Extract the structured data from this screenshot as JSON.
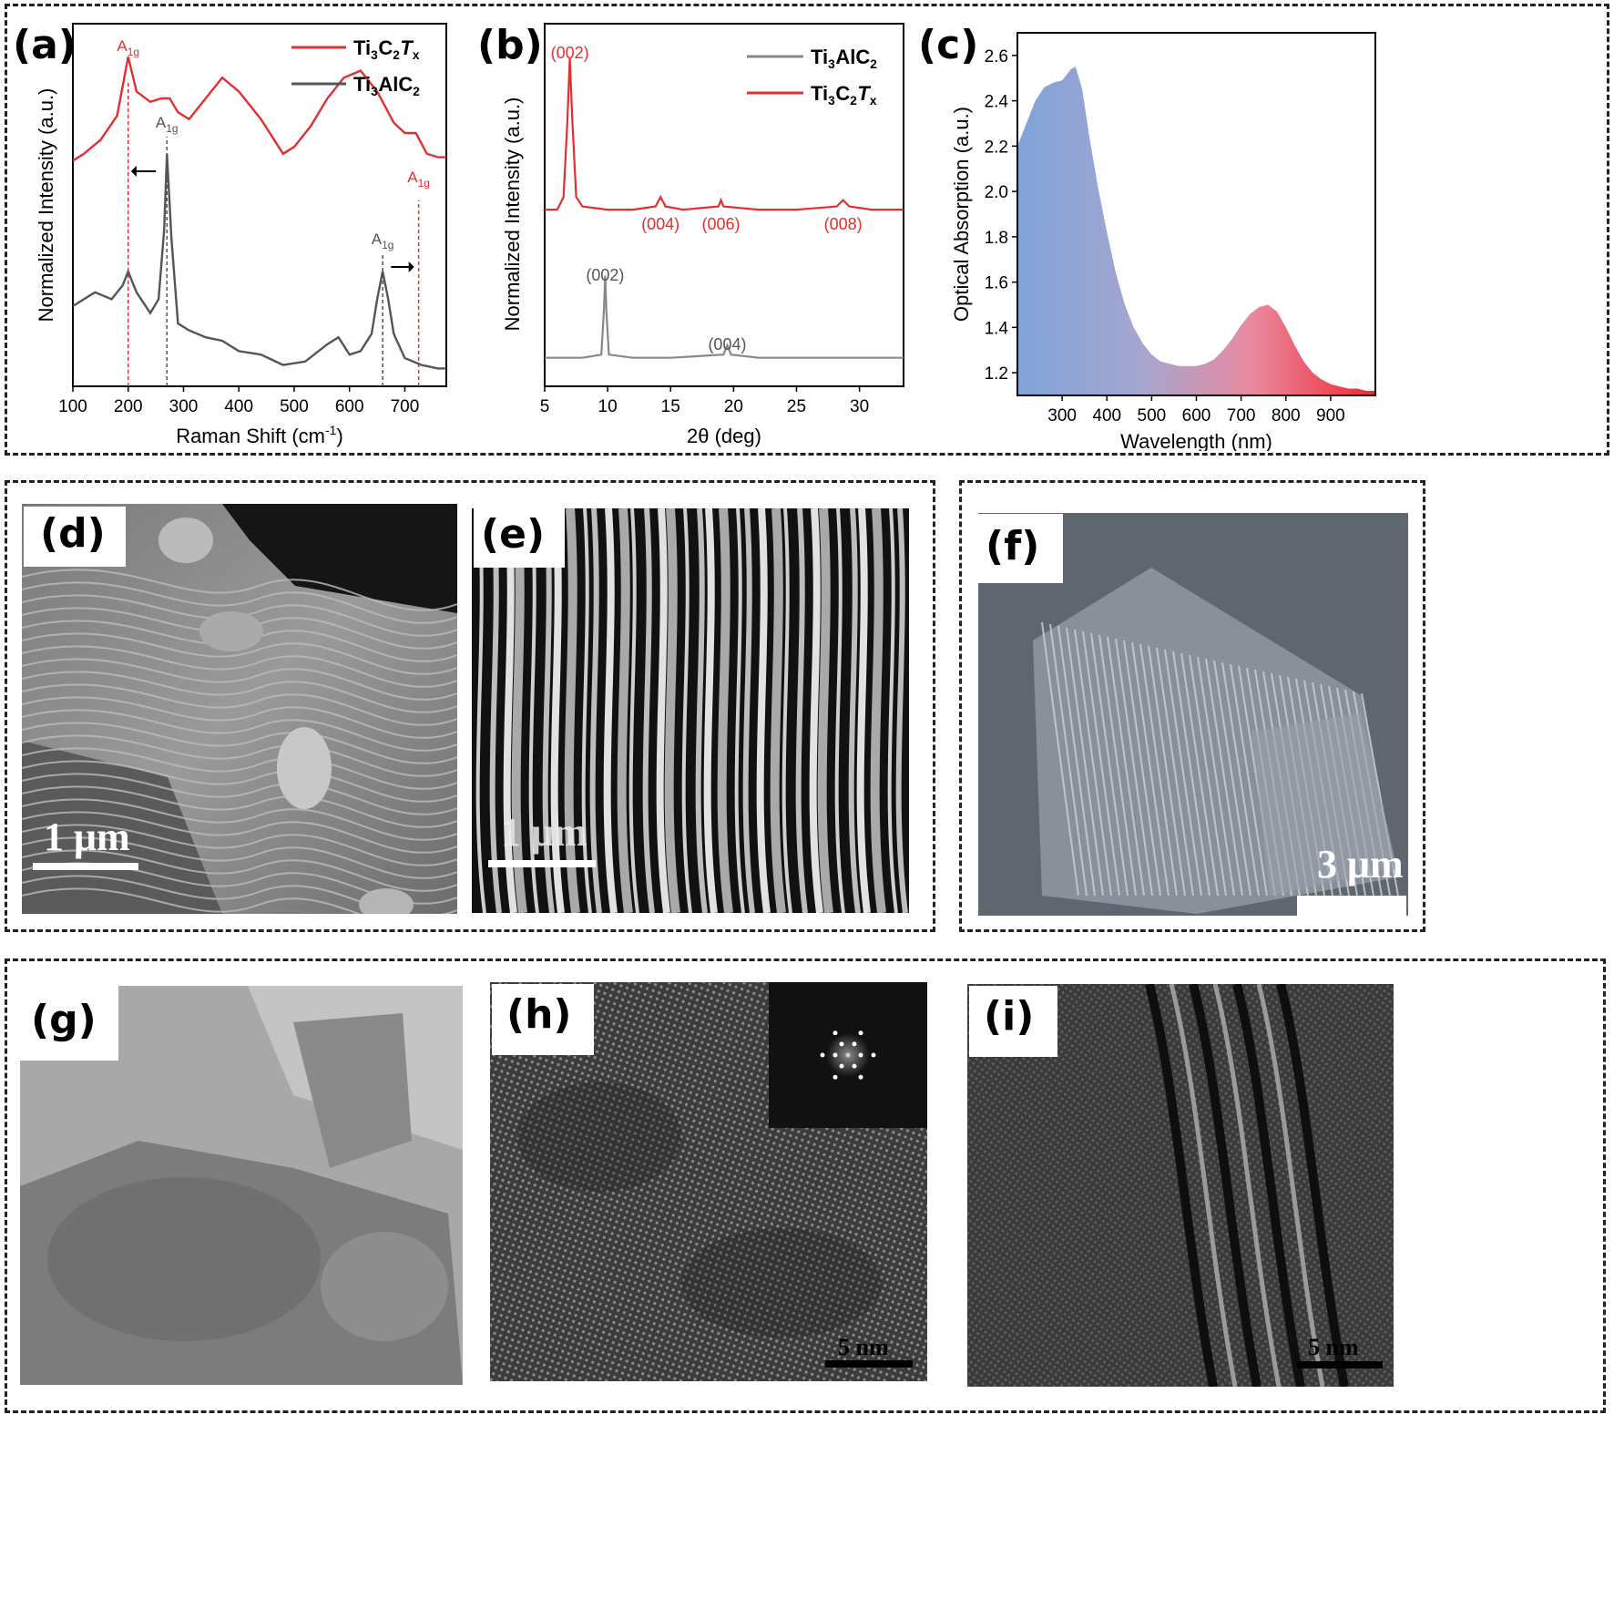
{
  "panels": {
    "a": {
      "label": "(a)",
      "xlabel_main": "Raman Shift (cm",
      "xlabel_sup": "-1",
      "xlabel_close": ")",
      "ylabel": "Normalized Intensity (a.u.)",
      "legend": [
        {
          "prefix": "Ti",
          "s1": "3",
          "mid": "C",
          "s2": "2",
          "suffix": "T",
          "suffix_sub": "x",
          "color": "#e03030"
        },
        {
          "prefix": "Ti",
          "s1": "3",
          "mid": "AlC",
          "s2": "2",
          "suffix": "",
          "suffix_sub": "",
          "color": "#555555"
        }
      ],
      "peak_labels": [
        {
          "main": "A",
          "sub": "1g",
          "color": "#e03030",
          "x": 200
        },
        {
          "main": "A",
          "sub": "1g",
          "color": "#555555",
          "x": 270
        },
        {
          "main": "A",
          "sub": "1g",
          "color": "#e03030",
          "x": 725
        },
        {
          "main": "A",
          "sub": "1g",
          "color": "#555555",
          "x": 660
        }
      ]
    },
    "b": {
      "label": "(b)",
      "xlabel": "2θ (deg)",
      "ylabel": "Normalized Intensity (a.u.)",
      "legend": [
        {
          "prefix": "Ti",
          "s1": "3",
          "mid": "AlC",
          "s2": "2",
          "suffix": "",
          "suffix_sub": "",
          "color": "#888888"
        },
        {
          "prefix": "Ti",
          "s1": "3",
          "mid": "C",
          "s2": "2",
          "suffix": "T",
          "suffix_sub": "x",
          "color": "#e03030"
        }
      ],
      "red_peaks": [
        {
          "text": "(002)",
          "x": 7
        },
        {
          "text": "(004)",
          "x": 14.2
        },
        {
          "text": "(006)",
          "x": 19
        },
        {
          "text": "(008)",
          "x": 28.7
        }
      ],
      "gray_peaks": [
        {
          "text": "(002)",
          "x": 9.8
        },
        {
          "text": "(004)",
          "x": 19.5
        }
      ]
    },
    "c": {
      "label": "(c)",
      "xlabel": "Wavelength (nm)",
      "ylabel": "Optical Absorption (a.u.)"
    },
    "d": {
      "label": "(d)",
      "scalebar": "1 μm"
    },
    "e": {
      "label": "(e)",
      "scalebar": "1 μm"
    },
    "f": {
      "label": "(f)",
      "scalebar": "3 μm"
    },
    "g": {
      "label": "(g)"
    },
    "h": {
      "label": "(h)",
      "scalebar": "5 nm"
    },
    "i": {
      "label": "(i)",
      "scalebar": "5 nm"
    }
  },
  "chart_data": [
    {
      "type": "line",
      "xlabel": "Raman Shift (cm-1)",
      "ylabel": "Normalized Intensity (a.u.)",
      "xlim": [
        100,
        775
      ],
      "xticks": [
        100,
        200,
        300,
        400,
        500,
        600,
        700
      ],
      "series": [
        {
          "name": "Ti3C2Tx",
          "color": "#e03030",
          "x": [
            100,
            120,
            150,
            180,
            200,
            215,
            240,
            260,
            275,
            290,
            310,
            340,
            370,
            400,
            440,
            480,
            500,
            530,
            560,
            590,
            620,
            650,
            680,
            700,
            720,
            740,
            760,
            775
          ],
          "y": [
            0.62,
            0.64,
            0.68,
            0.75,
            0.92,
            0.82,
            0.79,
            0.8,
            0.8,
            0.76,
            0.74,
            0.8,
            0.86,
            0.82,
            0.74,
            0.64,
            0.66,
            0.72,
            0.8,
            0.86,
            0.88,
            0.82,
            0.73,
            0.7,
            0.7,
            0.64,
            0.63,
            0.63
          ]
        },
        {
          "name": "Ti3AlC2",
          "color": "#555555",
          "x": [
            100,
            120,
            140,
            170,
            190,
            200,
            215,
            240,
            255,
            265,
            270,
            278,
            290,
            310,
            340,
            370,
            400,
            440,
            480,
            520,
            560,
            580,
            600,
            620,
            640,
            650,
            660,
            670,
            680,
            700,
            730,
            760,
            775
          ],
          "y": [
            0.2,
            0.22,
            0.24,
            0.22,
            0.26,
            0.3,
            0.24,
            0.18,
            0.22,
            0.42,
            0.64,
            0.4,
            0.15,
            0.13,
            0.11,
            0.1,
            0.07,
            0.06,
            0.03,
            0.04,
            0.09,
            0.11,
            0.06,
            0.07,
            0.12,
            0.22,
            0.3,
            0.22,
            0.12,
            0.05,
            0.03,
            0.02,
            0.02
          ]
        }
      ]
    },
    {
      "type": "line",
      "xlabel": "2θ (deg)",
      "ylabel": "Normalized Intensity (a.u.)",
      "xlim": [
        5,
        33.5
      ],
      "xticks": [
        5,
        10,
        15,
        20,
        25,
        30
      ],
      "series": [
        {
          "name": "Ti3C2Tx",
          "color": "#e03030",
          "x": [
            5,
            6,
            6.5,
            6.8,
            7.0,
            7.2,
            7.5,
            8,
            10,
            12,
            13.8,
            14.2,
            14.6,
            16,
            18.8,
            19,
            19.2,
            22,
            25,
            28.2,
            28.7,
            29.2,
            31,
            33.5
          ],
          "y": [
            0.52,
            0.52,
            0.56,
            0.8,
            1.0,
            0.8,
            0.56,
            0.53,
            0.52,
            0.52,
            0.53,
            0.56,
            0.53,
            0.52,
            0.53,
            0.55,
            0.53,
            0.52,
            0.52,
            0.53,
            0.55,
            0.53,
            0.52,
            0.52
          ]
        },
        {
          "name": "Ti3AlC2",
          "color": "#888888",
          "x": [
            5,
            8,
            9.5,
            9.7,
            9.8,
            9.9,
            10.1,
            12,
            15,
            19.2,
            19.5,
            19.8,
            22,
            26,
            30,
            33.5
          ],
          "y": [
            0.05,
            0.05,
            0.06,
            0.2,
            0.31,
            0.2,
            0.06,
            0.05,
            0.05,
            0.06,
            0.09,
            0.06,
            0.05,
            0.05,
            0.05,
            0.05
          ]
        }
      ]
    },
    {
      "type": "area",
      "xlabel": "Wavelength (nm)",
      "ylabel": "Optical Absorption (a.u.)",
      "xlim": [
        200,
        1000
      ],
      "ylim": [
        1.1,
        2.7
      ],
      "xticks": [
        300,
        400,
        500,
        600,
        700,
        800,
        900
      ],
      "yticks": [
        1.2,
        1.4,
        1.6,
        1.8,
        2.0,
        2.2,
        2.4,
        2.6
      ],
      "x": [
        200,
        220,
        240,
        260,
        280,
        300,
        320,
        330,
        345,
        360,
        380,
        400,
        420,
        440,
        460,
        480,
        500,
        520,
        540,
        560,
        580,
        600,
        620,
        640,
        660,
        680,
        700,
        720,
        740,
        760,
        780,
        800,
        820,
        840,
        860,
        880,
        900,
        920,
        940,
        960,
        980,
        1000
      ],
      "y": [
        2.2,
        2.3,
        2.4,
        2.46,
        2.48,
        2.49,
        2.54,
        2.55,
        2.45,
        2.25,
        2.02,
        1.82,
        1.64,
        1.5,
        1.4,
        1.33,
        1.28,
        1.25,
        1.24,
        1.23,
        1.23,
        1.23,
        1.24,
        1.26,
        1.3,
        1.35,
        1.41,
        1.46,
        1.49,
        1.5,
        1.47,
        1.4,
        1.32,
        1.25,
        1.2,
        1.17,
        1.15,
        1.14,
        1.13,
        1.13,
        1.12,
        1.12
      ]
    }
  ]
}
